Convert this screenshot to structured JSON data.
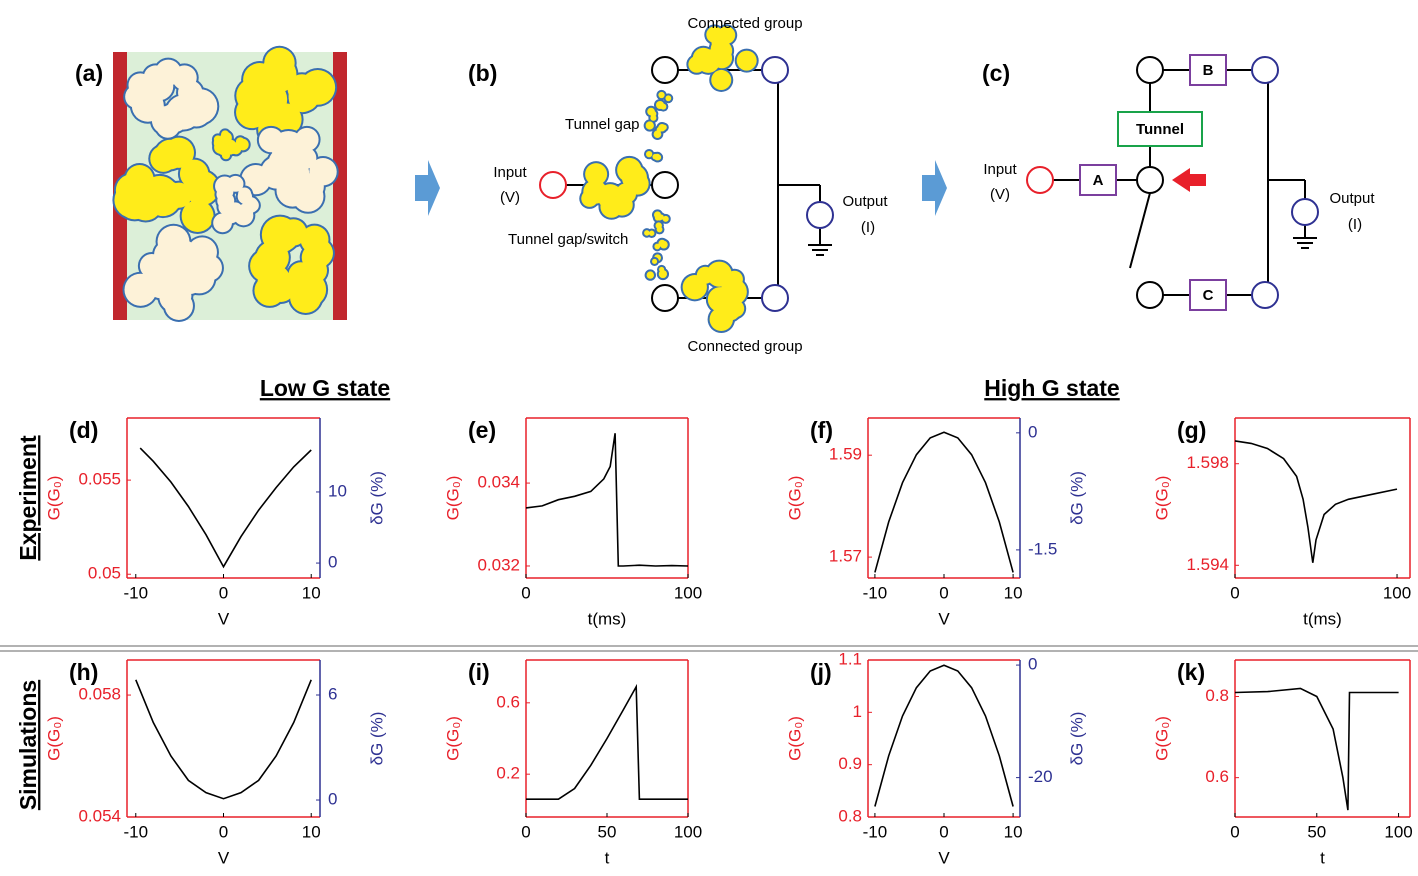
{
  "diagrams": {
    "a": {
      "label": "(a)"
    },
    "b": {
      "label": "(b)",
      "connected_top": "Connected group",
      "tunnel_gap": "Tunnel gap",
      "input": [
        "Input",
        "(V)"
      ],
      "switch": "Tunnel gap/switch",
      "output": [
        "Output",
        "(I)"
      ],
      "connected_bottom": "Connected group"
    },
    "c": {
      "label": "(c)",
      "input": [
        "Input",
        "(V)"
      ],
      "output": [
        "Output",
        "(I)"
      ],
      "box_a": "A",
      "box_b": "B",
      "box_c": "C",
      "tunnel": "Tunnel"
    },
    "column_labels": [
      "Low G state",
      "High G state"
    ],
    "row_labels": [
      "Experiment",
      "Simulations"
    ]
  },
  "chart_data": [
    {
      "type": "line",
      "label": "(d)",
      "xlabel": "V",
      "ylabel": "G(G₀)",
      "y2label": "δG (%)",
      "xlim": [
        -11,
        11
      ],
      "xticks": [
        -10,
        0,
        10
      ],
      "ylim": [
        0.0498,
        0.0583
      ],
      "yticks": [
        0.05,
        0.055
      ],
      "y2lim": [
        -2.1,
        20.4
      ],
      "y2ticks": [
        0,
        10
      ],
      "color": "#000000",
      "axis_color": "#e8202a",
      "axis2_color": "#2e3192",
      "x": [
        -9.5,
        -8,
        -6,
        -4,
        -2,
        0,
        2,
        4,
        6,
        8,
        10
      ],
      "values": [
        0.0567,
        0.056,
        0.0549,
        0.0536,
        0.0521,
        0.0504,
        0.052,
        0.0534,
        0.0546,
        0.0557,
        0.0566
      ]
    },
    {
      "type": "line",
      "label": "(e)",
      "xlabel": "t(ms)",
      "ylabel": "G(G₀)",
      "xlim": [
        0,
        100
      ],
      "xticks": [
        0,
        100
      ],
      "ylim": [
        0.03171,
        0.03557
      ],
      "yticks": [
        0.032,
        0.034
      ],
      "color": "#000000",
      "axis_color": "#e8202a",
      "x": [
        0,
        10,
        20,
        30,
        40,
        48,
        52,
        55,
        57,
        60,
        70,
        80,
        90,
        100
      ],
      "values": [
        0.0334,
        0.03345,
        0.0336,
        0.03368,
        0.0338,
        0.0341,
        0.0344,
        0.0352,
        0.032,
        0.032,
        0.03202,
        0.032,
        0.03201,
        0.032
      ]
    },
    {
      "type": "line",
      "label": "(f)",
      "xlabel": "V",
      "ylabel": "G(G₀)",
      "y2label": "δG (%)",
      "xlim": [
        -11,
        11
      ],
      "xticks": [
        -10,
        0,
        10
      ],
      "ylim": [
        1.5659,
        1.5973
      ],
      "yticks": [
        1.57,
        1.59
      ],
      "y2lim": [
        -1.86,
        0.19
      ],
      "y2ticks": [
        -1.5,
        0
      ],
      "color": "#000000",
      "axis_color": "#e8202a",
      "axis2_color": "#2e3192",
      "x": [
        -10,
        -8,
        -6,
        -4,
        -2,
        0,
        2,
        4,
        6,
        8,
        10
      ],
      "values": [
        1.567,
        1.5769,
        1.5846,
        1.5901,
        1.5934,
        1.5945,
        1.5934,
        1.5901,
        1.5846,
        1.5769,
        1.567
      ]
    },
    {
      "type": "line",
      "label": "(g)",
      "xlabel": "t(ms)",
      "ylabel": "G(G₀)",
      "xlim": [
        0,
        108
      ],
      "xticks": [
        0,
        100
      ],
      "ylim": [
        1.5935,
        1.5998
      ],
      "yticks": [
        1.594,
        1.598
      ],
      "color": "#000000",
      "axis_color": "#e8202a",
      "x": [
        0,
        10,
        20,
        30,
        38,
        42,
        45,
        48,
        50,
        55,
        62,
        70,
        85,
        100
      ],
      "values": [
        1.5989,
        1.5988,
        1.5986,
        1.5982,
        1.5975,
        1.5966,
        1.5955,
        1.5941,
        1.595,
        1.596,
        1.5964,
        1.5966,
        1.5968,
        1.597
      ]
    },
    {
      "type": "line",
      "label": "(h)",
      "xlabel": "V",
      "ylabel": "G(G₀)",
      "y2label": "δG (%)",
      "xlim": [
        -11,
        11
      ],
      "xticks": [
        -10,
        0,
        10
      ],
      "ylim": [
        0.054,
        0.05915
      ],
      "yticks": [
        0.054,
        0.058
      ],
      "y2lim": [
        -0.97,
        8
      ],
      "y2ticks": [
        0,
        6
      ],
      "color": "#000000",
      "axis_color": "#e8202a",
      "axis2_color": "#2e3192",
      "x": [
        -10,
        -8,
        -6,
        -4,
        -2,
        0,
        2,
        4,
        6,
        8,
        10
      ],
      "values": [
        0.0585,
        0.0571,
        0.056,
        0.0552,
        0.0548,
        0.0546,
        0.0548,
        0.0552,
        0.056,
        0.0571,
        0.0585
      ]
    },
    {
      "type": "line",
      "label": "(i)",
      "xlabel": "t",
      "ylabel": "G(G₀)",
      "xlim": [
        0,
        100
      ],
      "xticks": [
        0,
        50,
        100
      ],
      "ylim": [
        -0.04,
        0.84
      ],
      "yticks": [
        0.2,
        0.6
      ],
      "color": "#000000",
      "axis_color": "#e8202a",
      "x": [
        0,
        20,
        30,
        40,
        50,
        60,
        68,
        70,
        80,
        100
      ],
      "values": [
        0.06,
        0.06,
        0.12,
        0.25,
        0.4,
        0.56,
        0.69,
        0.06,
        0.06,
        0.06
      ]
    },
    {
      "type": "line",
      "label": "(j)",
      "xlabel": "V",
      "ylabel": "G(G₀)",
      "y2label": "δG (%)",
      "xlim": [
        -11,
        11
      ],
      "xticks": [
        -10,
        0,
        10
      ],
      "ylim": [
        0.8,
        1.1
      ],
      "yticks": [
        0.8,
        0.9,
        1,
        1.1
      ],
      "y2lim": [
        -27,
        0.9
      ],
      "y2ticks": [
        -20,
        0
      ],
      "color": "#000000",
      "axis_color": "#e8202a",
      "axis2_color": "#2e3192",
      "x": [
        -10,
        -8,
        -6,
        -4,
        -2,
        0,
        2,
        4,
        6,
        8,
        10
      ],
      "values": [
        0.82,
        0.917,
        0.993,
        1.047,
        1.079,
        1.09,
        1.079,
        1.047,
        0.993,
        0.917,
        0.82
      ]
    },
    {
      "type": "line",
      "label": "(k)",
      "xlabel": "t",
      "ylabel": "G(G₀)",
      "xlim": [
        0,
        107
      ],
      "xticks": [
        0,
        50,
        100
      ],
      "ylim": [
        0.503,
        0.89
      ],
      "yticks": [
        0.6,
        0.8
      ],
      "color": "#000000",
      "axis_color": "#e8202a",
      "x": [
        0,
        20,
        40,
        50,
        60,
        66,
        69,
        70,
        80,
        100
      ],
      "values": [
        0.81,
        0.812,
        0.82,
        0.8,
        0.72,
        0.6,
        0.52,
        0.81,
        0.81,
        0.81
      ]
    }
  ]
}
